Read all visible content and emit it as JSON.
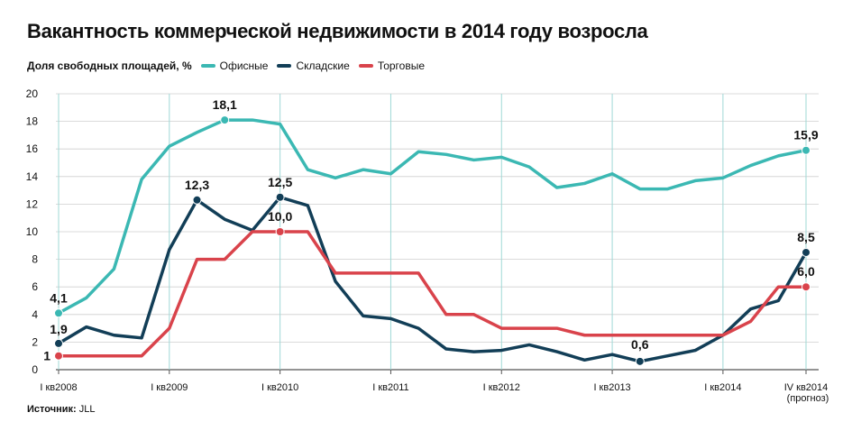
{
  "title": "Вакантность коммерческой недвижимости в 2014 году возросла",
  "legend": {
    "label": "Доля свободных площадей, %",
    "items": [
      {
        "name": "Офисные",
        "color": "#3bb8b3"
      },
      {
        "name": "Складские",
        "color": "#123e57"
      },
      {
        "name": "Торговые",
        "color": "#d9434b"
      }
    ]
  },
  "source": {
    "label": "Источник:",
    "value": "JLL"
  },
  "chart_data": {
    "type": "line",
    "ylim": [
      0,
      20
    ],
    "yticks": [
      0,
      2,
      4,
      6,
      8,
      10,
      12,
      14,
      16,
      18,
      20
    ],
    "grid": "vertical lines at each year tick, horizontal at each y tick",
    "xticks": [
      {
        "label": "I кв2008",
        "sub": ""
      },
      {
        "label": "I кв2009",
        "sub": ""
      },
      {
        "label": "I кв2010",
        "sub": ""
      },
      {
        "label": "I кв2011",
        "sub": ""
      },
      {
        "label": "I кв2012",
        "sub": ""
      },
      {
        "label": "I кв2013",
        "sub": ""
      },
      {
        "label": "I кв2014",
        "sub": ""
      },
      {
        "label": "IV кв2014",
        "sub": "(прогноз)"
      }
    ],
    "xtick_quarters": [
      0,
      4,
      8,
      12,
      16,
      20,
      24,
      27
    ],
    "series": [
      {
        "name": "Офисные",
        "color": "#3bb8b3",
        "values": [
          4.1,
          5.2,
          7.3,
          13.8,
          16.2,
          17.2,
          18.1,
          18.1,
          17.8,
          14.5,
          13.9,
          14.5,
          14.2,
          15.8,
          15.6,
          15.2,
          15.4,
          14.7,
          13.2,
          13.5,
          14.2,
          13.1,
          13.1,
          13.7,
          13.9,
          14.8,
          15.5,
          15.9
        ],
        "labels": [
          {
            "i": 0,
            "text": "4,1"
          },
          {
            "i": 6,
            "text": "18,1"
          },
          {
            "i": 27,
            "text": "15,9"
          }
        ]
      },
      {
        "name": "Складские",
        "color": "#123e57",
        "values": [
          1.9,
          3.1,
          2.5,
          2.3,
          8.7,
          12.3,
          10.9,
          10.1,
          12.5,
          11.9,
          6.4,
          3.9,
          3.7,
          3.0,
          1.5,
          1.3,
          1.4,
          1.8,
          1.3,
          0.7,
          1.1,
          0.6,
          1.0,
          1.4,
          2.5,
          4.4,
          5.0,
          8.5
        ],
        "labels": [
          {
            "i": 0,
            "text": "1,9"
          },
          {
            "i": 5,
            "text": "12,3"
          },
          {
            "i": 8,
            "text": "12,5"
          },
          {
            "i": 21,
            "text": "0,6"
          },
          {
            "i": 27,
            "text": "8,5"
          }
        ]
      },
      {
        "name": "Торговые",
        "color": "#d9434b",
        "values": [
          1,
          1,
          1,
          1,
          3,
          8,
          8,
          10,
          10,
          10,
          7,
          7,
          7,
          7,
          4,
          4,
          3,
          3,
          3,
          2.5,
          2.5,
          2.5,
          2.5,
          2.5,
          2.5,
          3.5,
          6.0,
          6.0
        ],
        "labels": [
          {
            "i": 0,
            "text": "1"
          },
          {
            "i": 8,
            "text": "10,0"
          },
          {
            "i": 27,
            "text": "6,0"
          }
        ]
      }
    ]
  }
}
